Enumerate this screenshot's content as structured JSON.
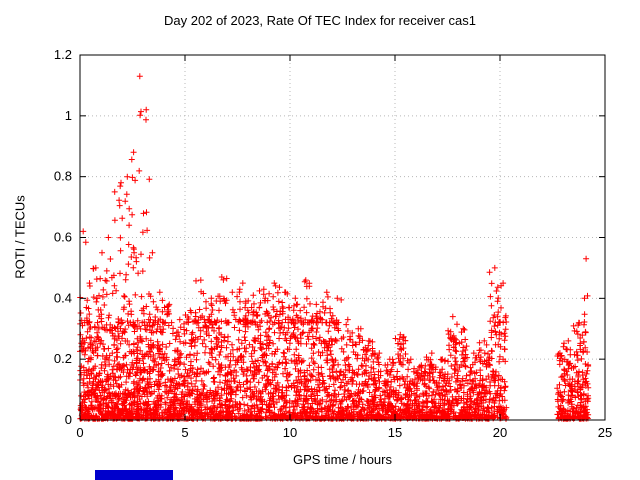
{
  "window": {
    "title": "Day 202 of 2023, Rate Of TEC Index for receiver cas1"
  },
  "chart_data": {
    "type": "scatter",
    "title": "Day 202 of 2023, Rate Of TEC Index for receiver cas1",
    "xlabel": "GPS time / hours",
    "ylabel": "ROTI / TECUs",
    "xlim": [
      0,
      25
    ],
    "ylim": [
      0,
      1.2
    ],
    "xticks": [
      0,
      5,
      10,
      15,
      20,
      25
    ],
    "xtick_labels": [
      "0",
      "5",
      "10",
      "15",
      "20",
      "25"
    ],
    "yticks": [
      0,
      0.2,
      0.4,
      0.6,
      0.8,
      1.0,
      1.2
    ],
    "ytick_labels": [
      "0",
      "0.2",
      "0.4",
      "0.6",
      "0.8",
      "1",
      "1.2"
    ],
    "grid": true,
    "legend": "none",
    "marker": "plus",
    "marker_color": "#ff0000",
    "grid_color": "#b8b8b8",
    "axis_color": "#000000",
    "point_seed": 42,
    "density_bins": [
      [
        0.0,
        0.3,
        0.62,
        70
      ],
      [
        0.3,
        0.6,
        0.45,
        70
      ],
      [
        0.6,
        0.9,
        0.5,
        70
      ],
      [
        0.9,
        1.2,
        0.55,
        70
      ],
      [
        1.2,
        1.5,
        0.6,
        70
      ],
      [
        1.5,
        1.8,
        0.75,
        75
      ],
      [
        1.8,
        2.1,
        0.78,
        75
      ],
      [
        2.1,
        2.4,
        0.8,
        75
      ],
      [
        2.4,
        2.7,
        0.88,
        75
      ],
      [
        2.7,
        3.0,
        1.13,
        80
      ],
      [
        3.0,
        3.3,
        1.02,
        75
      ],
      [
        3.3,
        3.6,
        0.55,
        70
      ],
      [
        3.6,
        4.0,
        0.42,
        80
      ],
      [
        4.0,
        4.5,
        0.38,
        95
      ],
      [
        4.5,
        5.0,
        0.33,
        95
      ],
      [
        5.0,
        5.5,
        0.36,
        95
      ],
      [
        5.5,
        6.0,
        0.46,
        95
      ],
      [
        6.0,
        6.5,
        0.4,
        95
      ],
      [
        6.5,
        7.0,
        0.47,
        95
      ],
      [
        7.0,
        7.5,
        0.42,
        95
      ],
      [
        7.5,
        8.0,
        0.45,
        95
      ],
      [
        8.0,
        8.5,
        0.41,
        95
      ],
      [
        8.5,
        9.0,
        0.43,
        95
      ],
      [
        9.0,
        9.5,
        0.45,
        95
      ],
      [
        9.5,
        10.0,
        0.42,
        95
      ],
      [
        10.0,
        10.5,
        0.4,
        95
      ],
      [
        10.5,
        11.0,
        0.46,
        95
      ],
      [
        11.0,
        11.5,
        0.38,
        90
      ],
      [
        11.5,
        12.0,
        0.42,
        90
      ],
      [
        12.0,
        12.5,
        0.4,
        85
      ],
      [
        12.5,
        13.0,
        0.33,
        85
      ],
      [
        13.0,
        13.5,
        0.3,
        80
      ],
      [
        13.5,
        14.0,
        0.26,
        80
      ],
      [
        14.0,
        14.5,
        0.22,
        80
      ],
      [
        14.5,
        15.0,
        0.2,
        80
      ],
      [
        15.0,
        15.5,
        0.28,
        80
      ],
      [
        15.5,
        16.0,
        0.2,
        80
      ],
      [
        16.0,
        16.5,
        0.18,
        80
      ],
      [
        16.5,
        17.0,
        0.22,
        80
      ],
      [
        17.0,
        17.5,
        0.2,
        80
      ],
      [
        17.5,
        18.0,
        0.34,
        85
      ],
      [
        18.0,
        18.5,
        0.3,
        85
      ],
      [
        18.5,
        19.0,
        0.22,
        80
      ],
      [
        19.0,
        19.5,
        0.26,
        80
      ],
      [
        19.5,
        20.0,
        0.5,
        90
      ],
      [
        20.0,
        20.3,
        0.45,
        50
      ],
      [
        22.7,
        23.0,
        0.22,
        40
      ],
      [
        23.0,
        23.5,
        0.26,
        85
      ],
      [
        23.5,
        24.0,
        0.32,
        95
      ],
      [
        24.0,
        24.2,
        0.53,
        45
      ]
    ],
    "data_gap_hours": [
      20.3,
      22.7
    ]
  },
  "artifact": {
    "label": "blue-bar-bottom-left",
    "color": "#0000cc"
  }
}
